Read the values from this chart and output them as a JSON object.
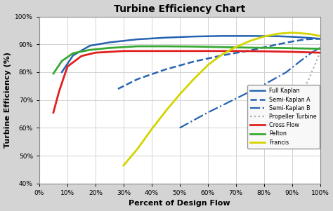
{
  "title": "Turbine Efficiency Chart",
  "xlabel": "Percent of Design Flow",
  "ylabel": "Turbine Efficiency (%)",
  "xlim": [
    0,
    1.0
  ],
  "ylim": [
    0.4,
    1.0
  ],
  "xticks": [
    0,
    0.1,
    0.2,
    0.3,
    0.4,
    0.5,
    0.6,
    0.7,
    0.8,
    0.9,
    1.0
  ],
  "yticks": [
    0.4,
    0.5,
    0.6,
    0.7,
    0.8,
    0.9,
    1.0
  ],
  "background_color": "#d4d4d4",
  "plot_bg_color": "#ffffff",
  "series": [
    {
      "key": "full_kaplan",
      "label": "Full Kaplan",
      "color": "#2563b0",
      "linestyle": "-",
      "linewidth": 1.8,
      "x": [
        0.08,
        0.12,
        0.18,
        0.25,
        0.35,
        0.45,
        0.55,
        0.65,
        0.75,
        0.85,
        0.9,
        0.95,
        1.0
      ],
      "y": [
        0.8,
        0.86,
        0.895,
        0.907,
        0.918,
        0.924,
        0.928,
        0.93,
        0.93,
        0.929,
        0.927,
        0.924,
        0.92
      ]
    },
    {
      "key": "semi_kaplan_a",
      "label": "Semi-Kaplan A",
      "color": "#2563b0",
      "linestyle": "--",
      "linewidth": 1.8,
      "x": [
        0.28,
        0.35,
        0.45,
        0.55,
        0.65,
        0.75,
        0.85,
        0.9,
        0.95,
        1.0
      ],
      "y": [
        0.74,
        0.775,
        0.81,
        0.838,
        0.86,
        0.878,
        0.9,
        0.91,
        0.918,
        0.92
      ]
    },
    {
      "key": "semi_kaplan_b",
      "label": "Semi-Kaplan B",
      "color": "#2563b0",
      "linestyle": "-.",
      "linewidth": 1.6,
      "x": [
        0.5,
        0.6,
        0.65,
        0.7,
        0.8,
        0.88,
        0.93,
        0.97,
        1.0
      ],
      "y": [
        0.6,
        0.655,
        0.68,
        0.705,
        0.755,
        0.8,
        0.84,
        0.87,
        0.888
      ]
    },
    {
      "key": "propeller",
      "label": "Propeller Turbine",
      "color": "#aaaaaa",
      "linestyle": ":",
      "linewidth": 1.6,
      "x": [
        0.88,
        0.92,
        0.96,
        1.0
      ],
      "y": [
        0.648,
        0.7,
        0.775,
        0.87
      ]
    },
    {
      "key": "cross_flow",
      "label": "Cross Flow",
      "color": "#e02020",
      "linestyle": "-",
      "linewidth": 2.0,
      "x": [
        0.05,
        0.07,
        0.1,
        0.15,
        0.2,
        0.3,
        0.4,
        0.5,
        0.6,
        0.7,
        0.8,
        0.9,
        1.0
      ],
      "y": [
        0.655,
        0.73,
        0.82,
        0.858,
        0.87,
        0.876,
        0.876,
        0.876,
        0.876,
        0.876,
        0.875,
        0.873,
        0.87
      ]
    },
    {
      "key": "pelton",
      "label": "Pelton",
      "color": "#38a832",
      "linestyle": "-",
      "linewidth": 2.0,
      "x": [
        0.05,
        0.08,
        0.12,
        0.18,
        0.25,
        0.35,
        0.45,
        0.55,
        0.65,
        0.75,
        0.85,
        0.9,
        1.0
      ],
      "y": [
        0.795,
        0.84,
        0.868,
        0.88,
        0.887,
        0.893,
        0.893,
        0.892,
        0.89,
        0.888,
        0.887,
        0.886,
        0.884
      ]
    },
    {
      "key": "francis",
      "label": "Francis",
      "color": "#d4d400",
      "linestyle": "-",
      "linewidth": 2.0,
      "x": [
        0.3,
        0.35,
        0.4,
        0.45,
        0.5,
        0.55,
        0.6,
        0.65,
        0.7,
        0.75,
        0.8,
        0.85,
        0.9,
        0.93,
        0.97,
        1.0
      ],
      "y": [
        0.465,
        0.525,
        0.595,
        0.66,
        0.72,
        0.775,
        0.825,
        0.863,
        0.89,
        0.912,
        0.928,
        0.938,
        0.942,
        0.94,
        0.936,
        0.93
      ]
    }
  ]
}
